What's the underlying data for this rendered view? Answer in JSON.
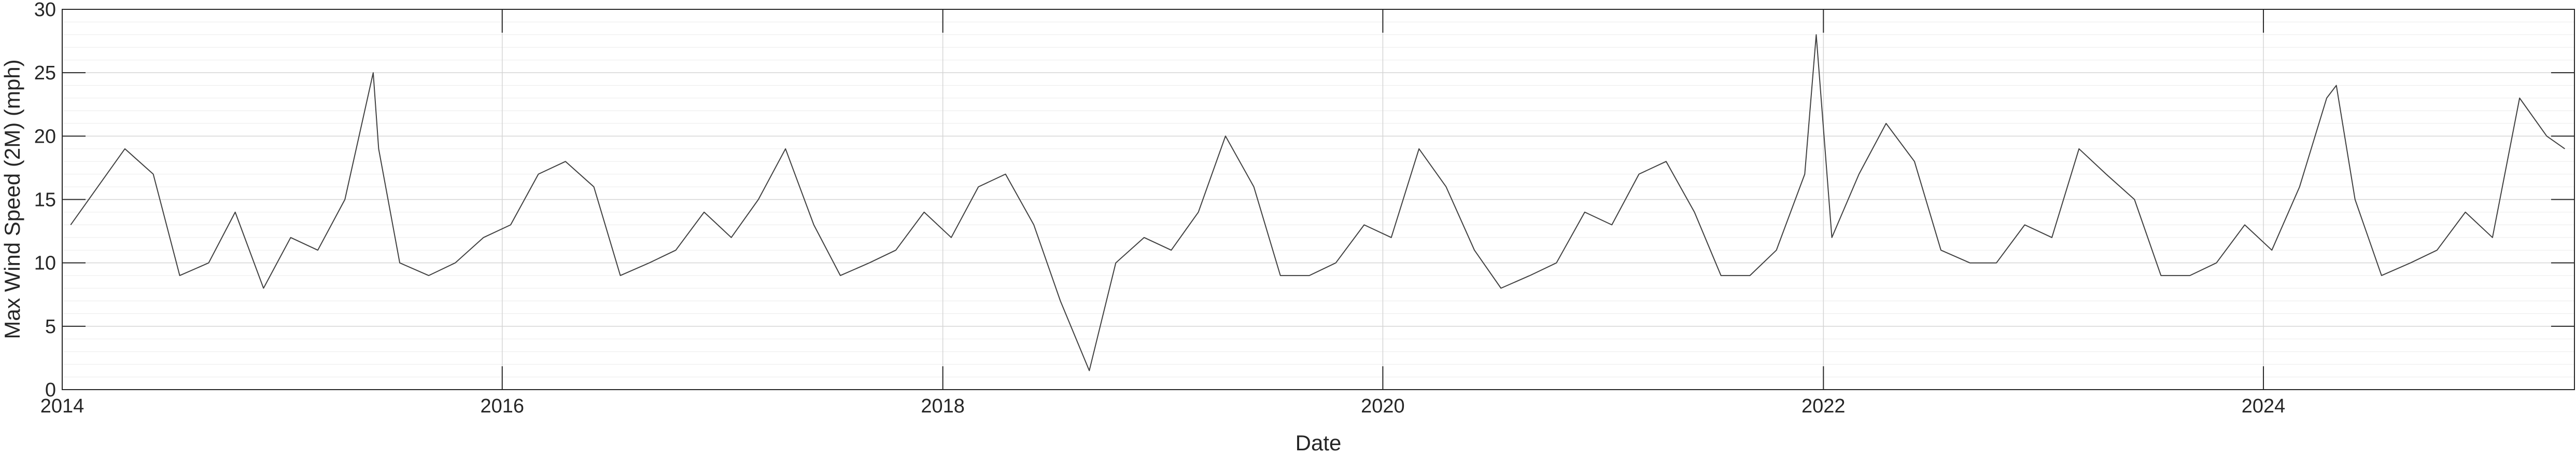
{
  "chart_data": {
    "type": "line",
    "title": "",
    "xlabel": "Date",
    "ylabel": "Max Wind Speed (2M) (mph)",
    "xlim": [
      "2014-01-01",
      "2025-05-31"
    ],
    "ylim": [
      0,
      30
    ],
    "x_ticks": [
      "2014",
      "2016",
      "2018",
      "2020",
      "2022",
      "2024"
    ],
    "y_ticks": [
      "0",
      "5",
      "10",
      "15",
      "20",
      "25",
      "30"
    ],
    "grid": true,
    "minor_grid": true,
    "legend": "none",
    "line_color": "#404040",
    "series": [
      {
        "name": "",
        "x": [
          "2014-01-15",
          "2014-03-01",
          "2014-04-15",
          "2014-06-01",
          "2014-07-15",
          "2014-09-01",
          "2014-10-15",
          "2014-12-01",
          "2015-01-15",
          "2015-03-01",
          "2015-04-15",
          "2015-06-01",
          "2015-06-10",
          "2015-07-15",
          "2015-09-01",
          "2015-10-15",
          "2015-12-01",
          "2016-01-15",
          "2016-03-01",
          "2016-04-15",
          "2016-06-01",
          "2016-07-15",
          "2016-09-01",
          "2016-10-15",
          "2016-12-01",
          "2017-01-15",
          "2017-03-01",
          "2017-04-15",
          "2017-06-01",
          "2017-07-15",
          "2017-09-01",
          "2017-10-15",
          "2017-12-01",
          "2018-01-15",
          "2018-03-01",
          "2018-04-15",
          "2018-06-01",
          "2018-07-15",
          "2018-09-01",
          "2018-10-15",
          "2018-12-01",
          "2019-01-15",
          "2019-03-01",
          "2019-04-15",
          "2019-06-01",
          "2019-07-15",
          "2019-09-01",
          "2019-10-15",
          "2019-12-01",
          "2020-01-15",
          "2020-03-01",
          "2020-04-15",
          "2020-06-01",
          "2020-07-15",
          "2020-09-01",
          "2020-10-15",
          "2020-12-01",
          "2021-01-15",
          "2021-03-01",
          "2021-04-15",
          "2021-06-01",
          "2021-07-15",
          "2021-09-01",
          "2021-10-15",
          "2021-12-01",
          "2021-12-20",
          "2022-01-15",
          "2022-03-01",
          "2022-04-15",
          "2022-06-01",
          "2022-07-15",
          "2022-09-01",
          "2022-10-15",
          "2022-12-01",
          "2023-01-15",
          "2023-03-01",
          "2023-04-15",
          "2023-06-01",
          "2023-07-15",
          "2023-09-01",
          "2023-10-15",
          "2023-12-01",
          "2024-01-15",
          "2024-03-01",
          "2024-04-15",
          "2024-05-01",
          "2024-06-01",
          "2024-07-15",
          "2024-09-01",
          "2024-10-15",
          "2024-12-01",
          "2025-01-15",
          "2025-03-01",
          "2025-04-15",
          "2025-05-15"
        ],
        "y": [
          13,
          16,
          19,
          17,
          9,
          10,
          14,
          8,
          12,
          11,
          15,
          25,
          19,
          10,
          9,
          10,
          12,
          13,
          17,
          18,
          16,
          9,
          10,
          11,
          14,
          12,
          15,
          19,
          13,
          9,
          10,
          11,
          14,
          12,
          16,
          17,
          13,
          7,
          1.5,
          10,
          12,
          11,
          14,
          20,
          16,
          9,
          9,
          10,
          13,
          12,
          19,
          16,
          11,
          8,
          9,
          10,
          14,
          13,
          17,
          18,
          14,
          9,
          9,
          11,
          17,
          28,
          12,
          17,
          21,
          18,
          11,
          10,
          10,
          13,
          12,
          19,
          17,
          15,
          9,
          9,
          10,
          13,
          11,
          16,
          23,
          24,
          15,
          9,
          10,
          11,
          14,
          12,
          23,
          20,
          19
        ]
      }
    ]
  }
}
